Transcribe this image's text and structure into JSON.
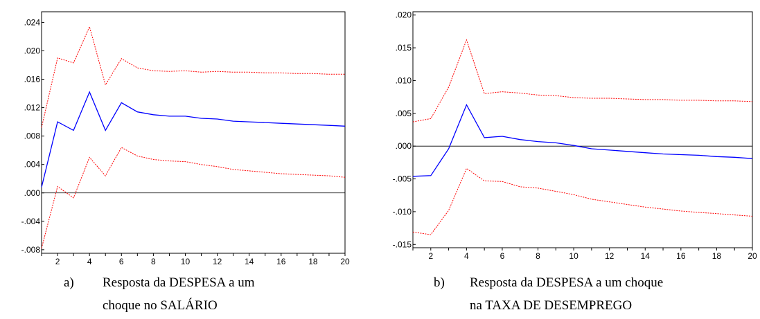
{
  "chart_data": [
    {
      "type": "line",
      "id": "a",
      "x": [
        1,
        2,
        3,
        4,
        5,
        6,
        7,
        8,
        9,
        10,
        11,
        12,
        13,
        14,
        15,
        16,
        17,
        18,
        19,
        20
      ],
      "x_ticks": [
        2,
        4,
        6,
        8,
        10,
        12,
        14,
        16,
        18,
        20
      ],
      "ylim": [
        -0.0085,
        0.0255
      ],
      "y_ticks": [
        {
          "value": 0.024,
          "label": ".024"
        },
        {
          "value": 0.02,
          "label": ".020"
        },
        {
          "value": 0.016,
          "label": ".016"
        },
        {
          "value": 0.012,
          "label": ".012"
        },
        {
          "value": 0.008,
          "label": ".008"
        },
        {
          "value": 0.004,
          "label": ".004"
        },
        {
          "value": 0.0,
          "label": ".000"
        },
        {
          "value": -0.004,
          "label": "-.004"
        },
        {
          "value": -0.008,
          "label": "-.008"
        }
      ],
      "zero_line": true,
      "series": [
        {
          "role": "upper",
          "color": "#ff0000",
          "style": "dotted",
          "values": [
            0.0092,
            0.019,
            0.0183,
            0.0234,
            0.0152,
            0.0189,
            0.0176,
            0.0172,
            0.0171,
            0.0172,
            0.017,
            0.0171,
            0.017,
            0.017,
            0.0169,
            0.0169,
            0.0168,
            0.0168,
            0.0167,
            0.0167
          ]
        },
        {
          "role": "response",
          "color": "#0000ff",
          "style": "solid",
          "values": [
            0.0008,
            0.01,
            0.0088,
            0.0142,
            0.0088,
            0.0127,
            0.0114,
            0.011,
            0.0108,
            0.0108,
            0.0105,
            0.0104,
            0.0101,
            0.01,
            0.0099,
            0.0098,
            0.0097,
            0.0096,
            0.0095,
            0.0094
          ]
        },
        {
          "role": "lower",
          "color": "#ff0000",
          "style": "dotted",
          "values": [
            -0.0078,
            0.0009,
            -0.0007,
            0.005,
            0.0024,
            0.0064,
            0.0052,
            0.0047,
            0.0045,
            0.0044,
            0.004,
            0.0037,
            0.0033,
            0.0031,
            0.0029,
            0.0027,
            0.0026,
            0.0025,
            0.0024,
            0.0022
          ]
        }
      ]
    },
    {
      "type": "line",
      "id": "b",
      "x": [
        1,
        2,
        3,
        4,
        5,
        6,
        7,
        8,
        9,
        10,
        11,
        12,
        13,
        14,
        15,
        16,
        17,
        18,
        19,
        20
      ],
      "x_ticks": [
        2,
        4,
        6,
        8,
        10,
        12,
        14,
        16,
        18,
        20
      ],
      "ylim": [
        -0.0155,
        0.0205
      ],
      "y_ticks": [
        {
          "value": 0.02,
          "label": ".020"
        },
        {
          "value": 0.015,
          "label": ".015"
        },
        {
          "value": 0.01,
          "label": ".010"
        },
        {
          "value": 0.005,
          "label": ".005"
        },
        {
          "value": 0.0,
          "label": ".000"
        },
        {
          "value": -0.005,
          "label": "-.005"
        },
        {
          "value": -0.01,
          "label": "-.010"
        },
        {
          "value": -0.015,
          "label": "-.015"
        }
      ],
      "zero_line": true,
      "series": [
        {
          "role": "upper",
          "color": "#ff0000",
          "style": "dotted",
          "values": [
            0.0037,
            0.0042,
            0.009,
            0.0162,
            0.008,
            0.0083,
            0.0081,
            0.0078,
            0.0077,
            0.0074,
            0.0073,
            0.0073,
            0.0072,
            0.0071,
            0.0071,
            0.007,
            0.007,
            0.0069,
            0.0069,
            0.0068
          ]
        },
        {
          "role": "response",
          "color": "#0000ff",
          "style": "solid",
          "values": [
            -0.0046,
            -0.0045,
            -0.0004,
            0.0063,
            0.0013,
            0.0015,
            0.001,
            0.0007,
            0.0005,
            0.0001,
            -0.0004,
            -0.0006,
            -0.0008,
            -0.001,
            -0.0012,
            -0.0013,
            -0.0014,
            -0.0016,
            -0.0017,
            -0.0019
          ]
        },
        {
          "role": "lower",
          "color": "#ff0000",
          "style": "dotted",
          "values": [
            -0.0131,
            -0.0135,
            -0.0098,
            -0.0034,
            -0.0053,
            -0.0054,
            -0.0062,
            -0.0064,
            -0.0069,
            -0.0074,
            -0.0081,
            -0.0085,
            -0.0089,
            -0.0093,
            -0.0096,
            -0.0099,
            -0.0101,
            -0.0103,
            -0.0105,
            -0.0107
          ]
        }
      ]
    }
  ],
  "captions": [
    {
      "letter": "a)",
      "line1": "Resposta da DESPESA a um",
      "line2": "choque no SALÁRIO"
    },
    {
      "letter": "b)",
      "line1": "Resposta da DESPESA a um choque",
      "line2": "na TAXA DE DESEMPREGO"
    }
  ]
}
